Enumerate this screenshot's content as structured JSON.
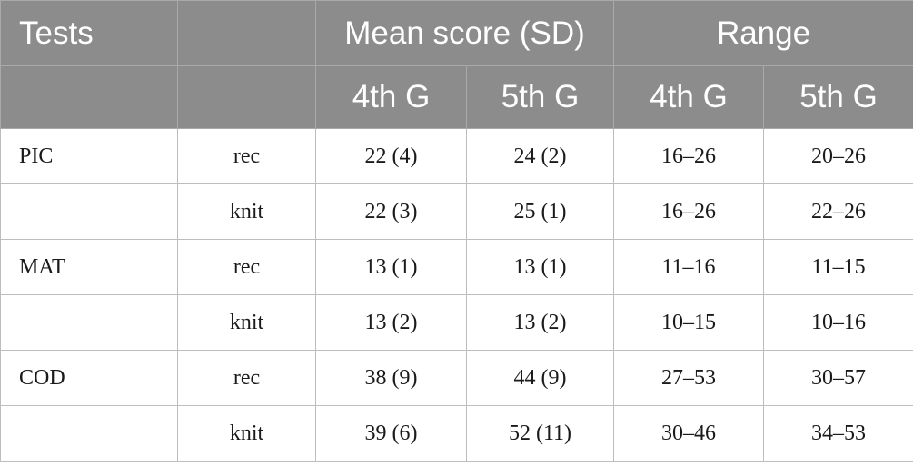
{
  "header": {
    "tests": "Tests",
    "blank": "",
    "mean_score": "Mean score (SD)",
    "range": "Range",
    "sub": [
      "4th G",
      "5th G",
      "4th G",
      "5th G"
    ]
  },
  "rows": [
    {
      "test": "PIC",
      "cond": "rec",
      "mean4": "22 (4)",
      "mean5": "24 (2)",
      "range4": "16–26",
      "range5": "20–26"
    },
    {
      "test": "",
      "cond": "knit",
      "mean4": "22 (3)",
      "mean5": "25 (1)",
      "range4": "16–26",
      "range5": "22–26"
    },
    {
      "test": "MAT",
      "cond": "rec",
      "mean4": "13 (1)",
      "mean5": "13 (1)",
      "range4": "11–16",
      "range5": "11–15"
    },
    {
      "test": "",
      "cond": "knit",
      "mean4": "13 (2)",
      "mean5": "13 (2)",
      "range4": "10–15",
      "range5": "10–16"
    },
    {
      "test": "COD",
      "cond": "rec",
      "mean4": "38 (9)",
      "mean5": "44 (9)",
      "range4": "27–53",
      "range5": "30–57"
    },
    {
      "test": "",
      "cond": "knit",
      "mean4": "39 (6)",
      "mean5": "52 (11)",
      "range4": "30–46",
      "range5": "34–53"
    }
  ]
}
